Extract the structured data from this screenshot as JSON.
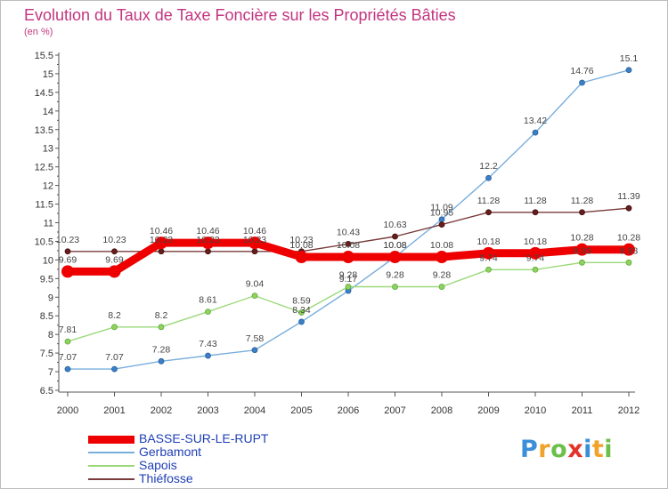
{
  "title": "Evolution du Taux de Taxe Foncière sur les Propriétés Bâties",
  "unit_label": "(en %)",
  "logo": {
    "text": "Proxiti",
    "colors": [
      "#3a8fd8",
      "#f0a22a",
      "#6cc04a",
      "#e2332b",
      "#3a8fd8",
      "#f0a22a",
      "#6cc04a"
    ]
  },
  "chart_data": {
    "type": "line",
    "title": "Evolution du Taux de Taxe Foncière sur les Propriétés Bâties",
    "ylabel": "(en %)",
    "xlabel": "",
    "x": [
      2000,
      2001,
      2002,
      2003,
      2004,
      2005,
      2006,
      2007,
      2008,
      2009,
      2010,
      2011,
      2012
    ],
    "x_tick_labels": [
      "2000",
      "2001",
      "2002",
      "2003",
      "2004",
      "2005",
      "2006",
      "2007",
      "2008",
      "2009",
      "2010",
      "2011",
      "2012"
    ],
    "ylim": [
      6.5,
      15.5
    ],
    "y_ticks": [
      6.5,
      7,
      7.5,
      8,
      8.5,
      9,
      9.5,
      10,
      10.5,
      11,
      11.5,
      12,
      12.5,
      13,
      13.5,
      14,
      14.5,
      15,
      15.5
    ],
    "y_tick_labels": [
      "6.5",
      "7",
      "7.5",
      "8",
      "8.5",
      "9",
      "9.5",
      "10",
      "10.5",
      "11",
      "11.5",
      "12",
      "12.5",
      "13",
      "13.5",
      "14",
      "14.5",
      "15",
      "15.5"
    ],
    "grid": false,
    "legend_position": "bottom-left",
    "series": [
      {
        "name": "BASSE-SUR-LE-RUPT",
        "color": "#ee0000",
        "values": [
          9.69,
          9.69,
          10.46,
          10.46,
          10.46,
          10.08,
          10.08,
          10.08,
          10.08,
          10.18,
          10.18,
          10.28,
          10.28
        ],
        "labels": [
          "9.69",
          "9.69",
          "10.46",
          "10.46",
          "10.46",
          "10.08",
          "10.08",
          "10.08",
          "10.08",
          "10.18",
          "10.18",
          "10.28",
          "10.28"
        ]
      },
      {
        "name": "Gerbamont",
        "color": "#7aaedc",
        "values": [
          7.07,
          7.07,
          7.28,
          7.43,
          7.58,
          8.34,
          9.17,
          10.08,
          11.09,
          12.2,
          13.42,
          14.76,
          15.1
        ],
        "labels": [
          "7.07",
          "7.07",
          "7.28",
          "7.43",
          "7.58",
          "8.34",
          "9.17",
          "10.08",
          "11.09",
          "12.2",
          "13.42",
          "14.76",
          "15.1"
        ]
      },
      {
        "name": "Sapois",
        "color": "#9bd97a",
        "values": [
          7.81,
          8.2,
          8.2,
          8.61,
          9.04,
          8.59,
          9.28,
          9.28,
          9.28,
          9.74,
          9.74,
          9.93,
          9.93
        ],
        "labels": [
          "7.81",
          "8.2",
          "8.2",
          "8.61",
          "9.04",
          "8.59",
          "9.28",
          "9.28",
          "9.28",
          "9.74",
          "9.74",
          "9.93",
          "9.93"
        ]
      },
      {
        "name": "Thiéfosse",
        "color": "#7a3b3b",
        "values": [
          10.23,
          10.23,
          10.23,
          10.23,
          10.23,
          10.23,
          10.43,
          10.63,
          10.95,
          11.28,
          11.28,
          11.28,
          11.39
        ],
        "labels": [
          "10.23",
          "10.23",
          "10.23",
          "10.23",
          "10.23",
          "10.23",
          "10.43",
          "10.63",
          "10.95",
          "11.28",
          "11.28",
          "11.28",
          "11.39"
        ]
      }
    ]
  }
}
